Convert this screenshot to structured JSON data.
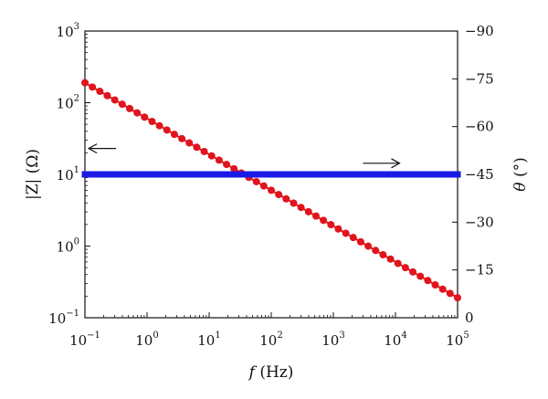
{
  "chart_data": {
    "type": "scatter",
    "x_axis": {
      "label_italic": "f",
      "label_rest": " (Hz)",
      "scale": "log",
      "range": [
        0.1,
        100000
      ],
      "ticks": [
        {
          "value": 0.1,
          "base": "10",
          "exp": "−1"
        },
        {
          "value": 1,
          "base": "10",
          "exp": "0"
        },
        {
          "value": 10,
          "base": "10",
          "exp": "1"
        },
        {
          "value": 100,
          "base": "10",
          "exp": "2"
        },
        {
          "value": 1000,
          "base": "10",
          "exp": "3"
        },
        {
          "value": 10000,
          "base": "10",
          "exp": "4"
        },
        {
          "value": 100000,
          "base": "10",
          "exp": "5"
        }
      ]
    },
    "y_left_axis": {
      "label": "|Z| (Ω)",
      "scale": "log",
      "range": [
        0.1,
        1000
      ],
      "ticks": [
        {
          "value": 0.1,
          "base": "10",
          "exp": "−1"
        },
        {
          "value": 1,
          "base": "10",
          "exp": "0"
        },
        {
          "value": 10,
          "base": "10",
          "exp": "1"
        },
        {
          "value": 100,
          "base": "10",
          "exp": "2"
        },
        {
          "value": 1000,
          "base": "10",
          "exp": "3"
        }
      ]
    },
    "y_right_axis": {
      "label_italic": "θ",
      "label_rest": " (°)",
      "scale": "linear",
      "range": [
        0,
        -90
      ],
      "ticks": [
        {
          "value": 0,
          "label": "0"
        },
        {
          "value": -15,
          "label": "−15"
        },
        {
          "value": -30,
          "label": "−30"
        },
        {
          "value": -45,
          "label": "−45"
        },
        {
          "value": -60,
          "label": "−60"
        },
        {
          "value": -75,
          "label": "−75"
        },
        {
          "value": -90,
          "label": "−90"
        }
      ]
    },
    "series": [
      {
        "axis": "left",
        "color": "#e0141c",
        "marker": "circle",
        "x_start": 0.1,
        "x_end": 100000,
        "y_start": 190,
        "y_end": 0.19,
        "points": 51
      },
      {
        "axis": "right",
        "color": "#1a1ae6",
        "marker": "square",
        "x_start": 0.1,
        "x_end": 100000,
        "y_start": -45,
        "y_end": -45,
        "points": 61
      }
    ],
    "annotations": [
      {
        "type": "arrow",
        "direction": "left",
        "x": 0.115,
        "y_left": 23
      },
      {
        "type": "arrow",
        "direction": "right",
        "x": 3000,
        "y_right": -48.5
      }
    ],
    "grid": false,
    "legend": "none"
  }
}
